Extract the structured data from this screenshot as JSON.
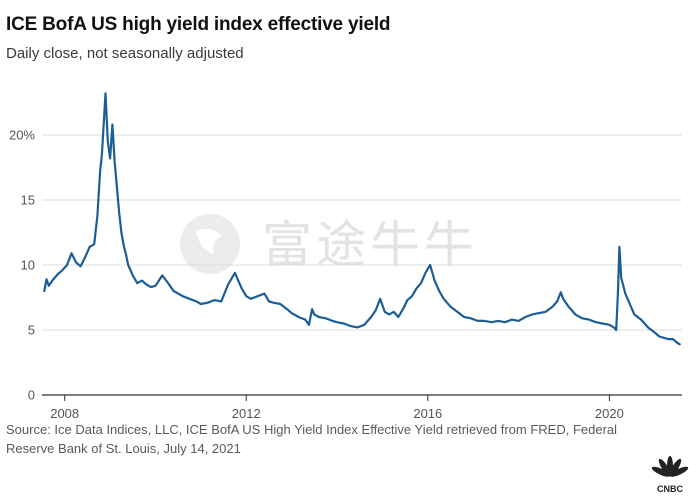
{
  "header": {
    "title": "ICE BofA US high yield index effective yield",
    "subtitle": "Daily close, not seasonally adjusted"
  },
  "footer": {
    "source": "Source: Ice Data Indices, LLC, ICE BofA US High Yield Index Effective Yield retrieved from FRED, Federal Reserve Bank of St. Louis, July 14, 2021"
  },
  "watermark": {
    "text": "富途牛牛"
  },
  "logo": {
    "text": "CNBC",
    "icon": "nbc-peacock-icon"
  },
  "colors": {
    "line": "#1b5e96",
    "grid": "#dddddd",
    "axis": "#333333"
  },
  "chart_data": {
    "type": "line",
    "title": "ICE BofA US high yield index effective yield",
    "subtitle": "Daily close, not seasonally adjusted",
    "xlabel": "",
    "ylabel": "",
    "xlim": [
      2007.5,
      2021.6
    ],
    "ylim": [
      0,
      25
    ],
    "x_ticks": [
      2008,
      2012,
      2016,
      2020
    ],
    "x_tick_labels": [
      "2008",
      "2012",
      "2016",
      "2020"
    ],
    "y_ticks": [
      0,
      5,
      10,
      15,
      20
    ],
    "y_tick_labels": [
      "0",
      "5",
      "10",
      "15",
      "20%"
    ],
    "grid": true,
    "legend": "none",
    "series": [
      {
        "x": [
          2007.55,
          2007.6,
          2007.65,
          2007.75,
          2007.85,
          2007.95,
          2008.05,
          2008.15,
          2008.25,
          2008.35,
          2008.45,
          2008.55,
          2008.65,
          2008.72,
          2008.78,
          2008.82,
          2008.87,
          2008.9,
          2008.95,
          2009.0,
          2009.05,
          2009.1,
          2009.15,
          2009.2,
          2009.25,
          2009.3,
          2009.35,
          2009.4,
          2009.45,
          2009.5,
          2009.6,
          2009.7,
          2009.8,
          2009.9,
          2010.0,
          2010.15,
          2010.3,
          2010.4,
          2010.5,
          2010.6,
          2010.75,
          2010.9,
          2011.0,
          2011.15,
          2011.3,
          2011.45,
          2011.6,
          2011.75,
          2011.9,
          2012.0,
          2012.1,
          2012.25,
          2012.4,
          2012.5,
          2012.6,
          2012.75,
          2012.9,
          2013.0,
          2013.15,
          2013.3,
          2013.38,
          2013.45,
          2013.5,
          2013.6,
          2013.75,
          2013.9,
          2014.0,
          2014.15,
          2014.3,
          2014.45,
          2014.6,
          2014.75,
          2014.85,
          2014.95,
          2015.05,
          2015.15,
          2015.25,
          2015.35,
          2015.45,
          2015.55,
          2015.65,
          2015.75,
          2015.85,
          2015.95,
          2016.0,
          2016.05,
          2016.15,
          2016.25,
          2016.35,
          2016.5,
          2016.65,
          2016.8,
          2016.95,
          2017.1,
          2017.25,
          2017.4,
          2017.55,
          2017.7,
          2017.85,
          2018.0,
          2018.15,
          2018.3,
          2018.45,
          2018.6,
          2018.75,
          2018.85,
          2018.93,
          2018.98,
          2019.1,
          2019.25,
          2019.4,
          2019.55,
          2019.7,
          2019.85,
          2020.0,
          2020.1,
          2020.15,
          2020.19,
          2020.22,
          2020.26,
          2020.3,
          2020.35,
          2020.45,
          2020.55,
          2020.7,
          2020.85,
          2021.0,
          2021.1,
          2021.2,
          2021.3,
          2021.4,
          2021.5,
          2021.55
        ],
        "y": [
          8.0,
          8.9,
          8.4,
          8.9,
          9.3,
          9.6,
          10.0,
          10.9,
          10.2,
          9.9,
          10.6,
          11.4,
          11.6,
          13.8,
          17.2,
          18.5,
          21.5,
          23.2,
          19.5,
          18.2,
          20.8,
          18.0,
          16.0,
          14.0,
          12.5,
          11.5,
          10.8,
          10.0,
          9.6,
          9.2,
          8.6,
          8.8,
          8.5,
          8.3,
          8.4,
          9.2,
          8.5,
          8.0,
          7.8,
          7.6,
          7.4,
          7.2,
          7.0,
          7.1,
          7.3,
          7.2,
          8.5,
          9.4,
          8.2,
          7.6,
          7.4,
          7.6,
          7.8,
          7.2,
          7.1,
          7.0,
          6.6,
          6.3,
          6.0,
          5.8,
          5.4,
          6.6,
          6.2,
          6.0,
          5.9,
          5.7,
          5.6,
          5.5,
          5.3,
          5.2,
          5.4,
          6.0,
          6.5,
          7.4,
          6.4,
          6.2,
          6.4,
          6.0,
          6.6,
          7.3,
          7.6,
          8.2,
          8.6,
          9.4,
          9.7,
          10.0,
          8.8,
          8.0,
          7.4,
          6.8,
          6.4,
          6.0,
          5.9,
          5.7,
          5.7,
          5.6,
          5.7,
          5.6,
          5.8,
          5.7,
          6.0,
          6.2,
          6.3,
          6.4,
          6.8,
          7.2,
          7.9,
          7.4,
          6.8,
          6.2,
          5.9,
          5.8,
          5.6,
          5.5,
          5.4,
          5.2,
          5.0,
          8.0,
          11.4,
          9.0,
          8.5,
          7.8,
          7.0,
          6.2,
          5.8,
          5.2,
          4.8,
          4.5,
          4.4,
          4.3,
          4.3,
          4.0,
          3.9
        ]
      }
    ]
  }
}
